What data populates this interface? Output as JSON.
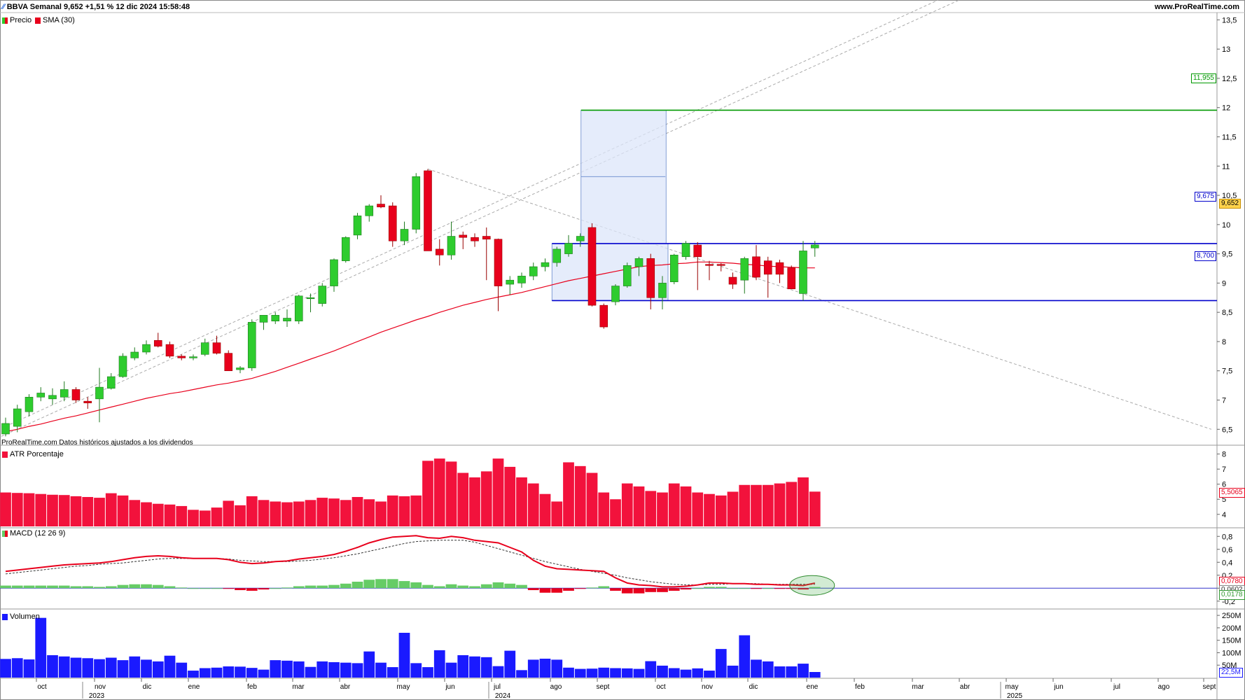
{
  "header": {
    "title": "BBVA Semanal 9,652 +1,51 % 12 dic 2024 15:58:48",
    "site": "www.ProRealTime.com"
  },
  "legend": {
    "price": "Precio",
    "sma": "SMA (30)",
    "atr": "ATR Porcentaje",
    "macd": "MACD (12 26 9)",
    "volume": "Volumen"
  },
  "footer_note": "ProRealTime.com Datos históricos ajustados a los dividendos",
  "colors": {
    "up": "#2ecc2e",
    "down": "#e8001c",
    "sma": "#e8001c",
    "box": "#dce6fa",
    "blue_line": "#0000cc",
    "green_line": "#009900",
    "volume": "#1a1aff",
    "atr": "#f2123c",
    "macd_line": "#e8001c",
    "macd_signal": "#333333",
    "hist_pos": "#66cc66",
    "hist_neg": "#e8001c"
  },
  "price_tags": {
    "target": "11,955",
    "resistance": "9,675",
    "last": "9,652",
    "support": "8,700"
  },
  "indicator_tags": {
    "atr_last": "5,5065",
    "macd_line": "0,0780",
    "macd_signal": "0,0602",
    "macd_hist": "0,0178",
    "volume_last": "22,5M"
  },
  "x_axis": {
    "months": [
      "oct",
      "nov",
      "dic",
      "ene",
      "feb",
      "mar",
      "abr",
      "may",
      "jun",
      "jul",
      "ago",
      "sept",
      "oct",
      "nov",
      "dic",
      "ene",
      "feb",
      "mar",
      "abr",
      "may",
      "jun",
      "jul",
      "ago",
      "sept"
    ],
    "years": [
      "2023",
      "2024",
      "2025"
    ]
  },
  "chart_data": [
    {
      "type": "candlestick",
      "title": "BBVA Semanal",
      "series_names": [
        "Precio",
        "SMA (30)"
      ],
      "y_ticks": [
        "6,5",
        "7",
        "7,5",
        "8",
        "8,5",
        "9",
        "9,5",
        "10",
        "10,5",
        "11",
        "11,5",
        "12",
        "12,5",
        "13",
        "13,5"
      ],
      "ylim": [
        6.3,
        13.6
      ],
      "ohlc": [
        [
          6.42,
          6.7,
          6.38,
          6.6
        ],
        [
          6.55,
          6.92,
          6.45,
          6.85
        ],
        [
          6.8,
          7.1,
          6.72,
          7.05
        ],
        [
          7.05,
          7.22,
          6.98,
          7.12
        ],
        [
          7.02,
          7.2,
          6.92,
          7.08
        ],
        [
          7.05,
          7.32,
          6.98,
          7.18
        ],
        [
          7.18,
          7.22,
          6.95,
          7.0
        ],
        [
          6.98,
          7.05,
          6.85,
          6.95
        ],
        [
          7.02,
          7.55,
          6.62,
          7.22
        ],
        [
          7.2,
          7.46,
          7.18,
          7.4
        ],
        [
          7.4,
          7.8,
          7.38,
          7.75
        ],
        [
          7.72,
          7.9,
          7.68,
          7.82
        ],
        [
          7.82,
          8.02,
          7.78,
          7.95
        ],
        [
          8.02,
          8.15,
          7.9,
          7.92
        ],
        [
          7.95,
          8.0,
          7.72,
          7.75
        ],
        [
          7.75,
          7.78,
          7.68,
          7.72
        ],
        [
          7.72,
          7.78,
          7.68,
          7.74
        ],
        [
          7.78,
          8.05,
          7.75,
          7.98
        ],
        [
          7.98,
          8.1,
          7.78,
          7.8
        ],
        [
          7.8,
          7.85,
          7.5,
          7.5
        ],
        [
          7.52,
          7.58,
          7.46,
          7.55
        ],
        [
          7.55,
          8.38,
          7.5,
          8.33
        ],
        [
          8.33,
          8.45,
          8.2,
          8.45
        ],
        [
          8.35,
          8.5,
          8.3,
          8.45
        ],
        [
          8.35,
          8.55,
          8.25,
          8.4
        ],
        [
          8.35,
          8.8,
          8.3,
          8.78
        ],
        [
          8.75,
          8.82,
          8.5,
          8.75
        ],
        [
          8.65,
          9.0,
          8.6,
          8.95
        ],
        [
          8.95,
          9.42,
          8.85,
          9.4
        ],
        [
          9.38,
          9.8,
          9.35,
          9.78
        ],
        [
          9.82,
          10.2,
          9.75,
          10.15
        ],
        [
          10.15,
          10.35,
          10.05,
          10.32
        ],
        [
          10.35,
          10.5,
          10.28,
          10.3
        ],
        [
          10.32,
          10.38,
          9.62,
          9.72
        ],
        [
          9.72,
          10.05,
          9.65,
          9.92
        ],
        [
          9.92,
          10.88,
          9.85,
          10.82
        ],
        [
          10.92,
          10.95,
          9.6,
          9.55
        ],
        [
          9.58,
          9.75,
          9.3,
          9.48
        ],
        [
          9.48,
          10.05,
          9.4,
          9.8
        ],
        [
          9.82,
          9.88,
          9.58,
          9.78
        ],
        [
          9.78,
          9.85,
          9.62,
          9.72
        ],
        [
          9.8,
          9.95,
          9.05,
          9.75
        ],
        [
          9.75,
          9.76,
          8.52,
          8.95
        ],
        [
          8.98,
          9.12,
          8.8,
          9.05
        ],
        [
          9.0,
          9.18,
          8.92,
          9.12
        ],
        [
          9.12,
          9.35,
          9.05,
          9.28
        ],
        [
          9.28,
          9.42,
          9.2,
          9.35
        ],
        [
          9.35,
          9.62,
          9.28,
          9.58
        ],
        [
          9.5,
          9.82,
          9.45,
          9.68
        ],
        [
          9.72,
          9.85,
          9.62,
          9.8
        ],
        [
          9.95,
          10.02,
          8.6,
          8.62
        ],
        [
          8.62,
          8.65,
          8.22,
          8.25
        ],
        [
          8.68,
          8.98,
          8.62,
          8.95
        ],
        [
          8.95,
          9.35,
          8.92,
          9.3
        ],
        [
          9.28,
          9.45,
          9.12,
          9.42
        ],
        [
          9.42,
          9.5,
          8.55,
          8.75
        ],
        [
          8.75,
          9.12,
          8.55,
          9.0
        ],
        [
          9.02,
          9.5,
          8.98,
          9.48
        ],
        [
          9.45,
          9.72,
          9.4,
          9.68
        ],
        [
          9.65,
          9.7,
          8.88,
          9.45
        ],
        [
          9.32,
          9.38,
          9.05,
          9.3
        ],
        [
          9.32,
          9.34,
          9.2,
          9.3
        ],
        [
          9.1,
          9.18,
          8.9,
          8.98
        ],
        [
          9.05,
          9.45,
          8.82,
          9.42
        ],
        [
          9.45,
          9.65,
          9.05,
          9.1
        ],
        [
          9.38,
          9.45,
          8.75,
          9.15
        ],
        [
          9.35,
          9.4,
          9.0,
          9.15
        ],
        [
          9.26,
          9.3,
          8.9,
          8.9
        ],
        [
          8.82,
          9.72,
          8.7,
          9.55
        ],
        [
          9.6,
          9.72,
          9.45,
          9.652
        ]
      ],
      "sma": [
        6.46,
        6.5,
        6.55,
        6.59,
        6.64,
        6.69,
        6.73,
        6.78,
        6.83,
        6.88,
        6.93,
        6.98,
        7.03,
        7.07,
        7.11,
        7.14,
        7.18,
        7.22,
        7.26,
        7.29,
        7.33,
        7.37,
        7.43,
        7.49,
        7.56,
        7.63,
        7.7,
        7.77,
        7.84,
        7.92,
        8.0,
        8.08,
        8.16,
        8.23,
        8.3,
        8.37,
        8.43,
        8.5,
        8.56,
        8.62,
        8.67,
        8.72,
        8.76,
        8.8,
        8.84,
        8.89,
        8.94,
        8.99,
        9.04,
        9.08,
        9.12,
        9.16,
        9.2,
        9.24,
        9.28,
        9.3,
        9.31,
        9.33,
        9.34,
        9.36,
        9.36,
        9.35,
        9.34,
        9.32,
        9.31,
        9.29,
        9.28,
        9.27,
        9.26,
        9.26
      ]
    },
    {
      "type": "bar",
      "title": "ATR Porcentaje",
      "y_ticks": [
        "4",
        "5",
        "6",
        "7",
        "8"
      ],
      "ylim": [
        3.2,
        8.4
      ],
      "values": [
        5.45,
        5.42,
        5.4,
        5.35,
        5.3,
        5.28,
        5.2,
        5.15,
        5.1,
        5.4,
        5.25,
        4.95,
        4.8,
        4.7,
        4.65,
        4.55,
        4.3,
        4.25,
        4.45,
        4.9,
        4.6,
        5.2,
        4.95,
        4.85,
        4.8,
        4.85,
        4.95,
        5.1,
        5.05,
        4.95,
        5.15,
        5.0,
        4.85,
        5.25,
        5.2,
        5.25,
        7.55,
        7.7,
        7.5,
        6.75,
        6.45,
        6.85,
        7.7,
        7.15,
        6.45,
        6.05,
        5.35,
        4.85,
        7.45,
        7.2,
        6.75,
        5.45,
        5.0,
        6.05,
        5.85,
        5.55,
        5.45,
        6.05,
        5.85,
        5.45,
        5.35,
        5.25,
        5.5,
        5.95,
        5.95,
        5.95,
        6.05,
        6.15,
        6.45,
        5.5065
      ]
    },
    {
      "type": "line",
      "title": "MACD (12 26 9)",
      "y_ticks": [
        "-0,2",
        "0",
        "0,2",
        "0,4",
        "0,6",
        "0,8"
      ],
      "ylim": [
        -0.3,
        0.9
      ],
      "macd": [
        0.26,
        0.28,
        0.3,
        0.32,
        0.34,
        0.36,
        0.37,
        0.38,
        0.39,
        0.41,
        0.44,
        0.47,
        0.49,
        0.5,
        0.49,
        0.47,
        0.46,
        0.46,
        0.46,
        0.44,
        0.4,
        0.38,
        0.39,
        0.41,
        0.42,
        0.45,
        0.47,
        0.49,
        0.52,
        0.57,
        0.63,
        0.7,
        0.75,
        0.79,
        0.8,
        0.81,
        0.78,
        0.77,
        0.8,
        0.78,
        0.74,
        0.72,
        0.7,
        0.63,
        0.56,
        0.43,
        0.34,
        0.3,
        0.29,
        0.28,
        0.27,
        0.26,
        0.16,
        0.08,
        0.05,
        0.04,
        0.02,
        0.02,
        0.03,
        0.05,
        0.08,
        0.08,
        0.07,
        0.07,
        0.06,
        0.06,
        0.05,
        0.05,
        0.04,
        0.078
      ],
      "signal": [
        0.22,
        0.24,
        0.26,
        0.28,
        0.3,
        0.32,
        0.34,
        0.35,
        0.37,
        0.38,
        0.39,
        0.41,
        0.43,
        0.45,
        0.46,
        0.46,
        0.46,
        0.46,
        0.46,
        0.45,
        0.43,
        0.42,
        0.41,
        0.41,
        0.41,
        0.42,
        0.43,
        0.45,
        0.47,
        0.5,
        0.53,
        0.57,
        0.61,
        0.65,
        0.69,
        0.72,
        0.73,
        0.74,
        0.74,
        0.74,
        0.71,
        0.66,
        0.61,
        0.56,
        0.51,
        0.46,
        0.41,
        0.37,
        0.33,
        0.29,
        0.26,
        0.23,
        0.2,
        0.16,
        0.13,
        0.1,
        0.08,
        0.06,
        0.05,
        0.05,
        0.06,
        0.06,
        0.07,
        0.07,
        0.07,
        0.06,
        0.06,
        0.06,
        0.06,
        0.0602
      ]
    },
    {
      "type": "bar",
      "title": "Volumen",
      "y_ticks": [
        "50M",
        "100M",
        "150M",
        "200M",
        "250M"
      ],
      "ylim": [
        0,
        270
      ],
      "values": [
        75,
        78,
        73,
        240,
        90,
        85,
        80,
        78,
        74,
        80,
        70,
        85,
        72,
        65,
        88,
        60,
        28,
        38,
        40,
        45,
        44,
        39,
        32,
        70,
        68,
        65,
        43,
        65,
        62,
        60,
        58,
        105,
        60,
        42,
        180,
        58,
        42,
        110,
        60,
        90,
        85,
        82,
        46,
        108,
        30,
        72,
        76,
        72,
        40,
        35,
        36,
        40,
        38,
        37,
        35,
        66,
        48,
        38,
        32,
        37,
        28,
        115,
        48,
        170,
        72,
        65,
        45,
        45,
        56,
        22.5
      ]
    }
  ]
}
